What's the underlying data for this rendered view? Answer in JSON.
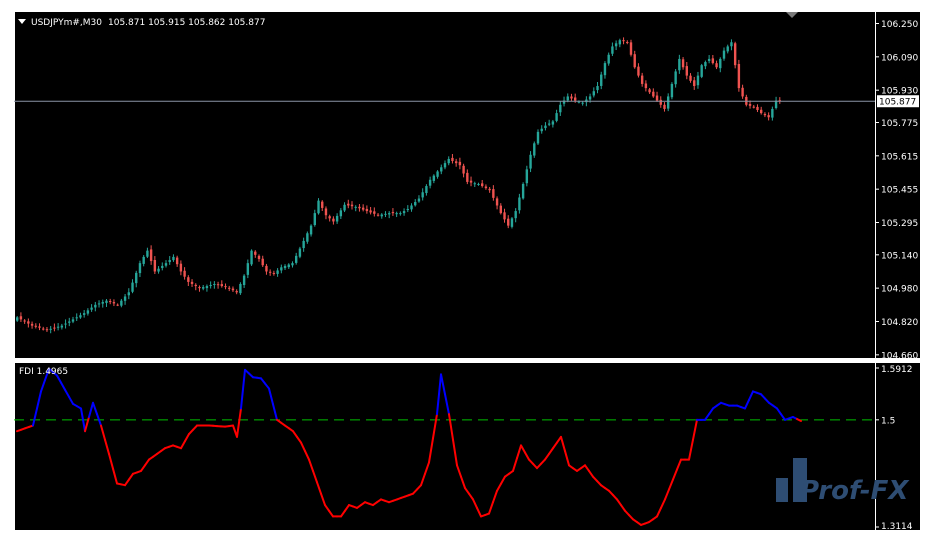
{
  "colors": {
    "background": "#000000",
    "frame": "#ffffff",
    "bull": "#26a69a",
    "bear": "#ef5350",
    "fdi_low": "#ff0000",
    "fdi_high": "#0000ff",
    "fdi_level": "#00c000",
    "bid_line": "#8a94a6",
    "axis_text": "#ffffff",
    "watermark": "#2e4d73"
  },
  "chart_data": [
    {
      "type": "candlestick",
      "title": "USDJPYm#,M30",
      "ohlc_readout": "105.871 105.915 105.862 105.877",
      "ylim": [
        104.64,
        106.31
      ],
      "y_ticks": [
        "106.250",
        "106.090",
        "105.930",
        "105.775",
        "105.615",
        "105.455",
        "105.295",
        "105.140",
        "104.980",
        "104.820",
        "104.660"
      ],
      "current_price": "105.877",
      "close_anchors": [
        [
          0,
          104.84
        ],
        [
          4,
          104.8
        ],
        [
          8,
          104.78
        ],
        [
          12,
          104.8
        ],
        [
          15,
          104.83
        ],
        [
          18,
          104.86
        ],
        [
          21,
          104.9
        ],
        [
          24,
          104.92
        ],
        [
          27,
          104.9
        ],
        [
          30,
          104.96
        ],
        [
          33,
          105.1
        ],
        [
          35,
          105.16
        ],
        [
          37,
          105.06
        ],
        [
          40,
          105.1
        ],
        [
          42,
          105.13
        ],
        [
          44,
          105.06
        ],
        [
          46,
          105.01
        ],
        [
          49,
          104.98
        ],
        [
          53,
          105.0
        ],
        [
          57,
          104.98
        ],
        [
          59,
          104.96
        ],
        [
          61,
          105.04
        ],
        [
          63,
          105.16
        ],
        [
          65,
          105.12
        ],
        [
          67,
          105.06
        ],
        [
          69,
          105.05
        ],
        [
          71,
          105.08
        ],
        [
          74,
          105.1
        ],
        [
          76,
          105.17
        ],
        [
          79,
          105.28
        ],
        [
          81,
          105.4
        ],
        [
          83,
          105.33
        ],
        [
          85,
          105.3
        ],
        [
          88,
          105.38
        ],
        [
          91,
          105.37
        ],
        [
          94,
          105.35
        ],
        [
          97,
          105.33
        ],
        [
          100,
          105.34
        ],
        [
          103,
          105.34
        ],
        [
          105,
          105.36
        ],
        [
          108,
          105.41
        ],
        [
          111,
          105.5
        ],
        [
          114,
          105.56
        ],
        [
          116,
          105.6
        ],
        [
          119,
          105.57
        ],
        [
          121,
          105.49
        ],
        [
          124,
          105.48
        ],
        [
          127,
          105.45
        ],
        [
          130,
          105.34
        ],
        [
          132,
          105.28
        ],
        [
          134,
          105.35
        ],
        [
          136,
          105.48
        ],
        [
          138,
          105.62
        ],
        [
          140,
          105.73
        ],
        [
          142,
          105.76
        ],
        [
          144,
          105.78
        ],
        [
          146,
          105.86
        ],
        [
          148,
          105.9
        ],
        [
          150,
          105.88
        ],
        [
          152,
          105.87
        ],
        [
          154,
          105.9
        ],
        [
          156,
          105.95
        ],
        [
          158,
          106.06
        ],
        [
          160,
          106.14
        ],
        [
          162,
          106.17
        ],
        [
          164,
          106.16
        ],
        [
          166,
          106.04
        ],
        [
          168,
          105.96
        ],
        [
          170,
          105.92
        ],
        [
          172,
          105.88
        ],
        [
          174,
          105.84
        ],
        [
          176,
          105.96
        ],
        [
          178,
          106.08
        ],
        [
          180,
          106.0
        ],
        [
          182,
          105.95
        ],
        [
          184,
          106.05
        ],
        [
          186,
          106.08
        ],
        [
          188,
          106.04
        ],
        [
          190,
          106.12
        ],
        [
          192,
          106.16
        ],
        [
          194,
          105.94
        ],
        [
          196,
          105.86
        ],
        [
          198,
          105.85
        ],
        [
          200,
          105.82
        ],
        [
          202,
          105.8
        ],
        [
          204,
          105.88
        ],
        [
          205,
          105.877
        ]
      ]
    },
    {
      "type": "line",
      "title": "FDI 1.4965",
      "ylim": [
        1.3114,
        1.5912
      ],
      "y_ticks": [
        "1.5912",
        "1.5",
        "1.3114"
      ],
      "level": 1.5,
      "values_anchors": [
        [
          0,
          1.48
        ],
        [
          2,
          1.485
        ],
        [
          4,
          1.49
        ],
        [
          6,
          1.55
        ],
        [
          8,
          1.59
        ],
        [
          10,
          1.578
        ],
        [
          12,
          1.553
        ],
        [
          14,
          1.528
        ],
        [
          16,
          1.52
        ],
        [
          17,
          1.48
        ],
        [
          19,
          1.53
        ],
        [
          21,
          1.49
        ],
        [
          23,
          1.44
        ],
        [
          25,
          1.388
        ],
        [
          27,
          1.385
        ],
        [
          29,
          1.405
        ],
        [
          31,
          1.41
        ],
        [
          33,
          1.43
        ],
        [
          35,
          1.44
        ],
        [
          37,
          1.45
        ],
        [
          39,
          1.455
        ],
        [
          41,
          1.45
        ],
        [
          43,
          1.475
        ],
        [
          45,
          1.49
        ],
        [
          48,
          1.49
        ],
        [
          52,
          1.488
        ],
        [
          54,
          1.49
        ],
        [
          55,
          1.47
        ],
        [
          56,
          1.52
        ],
        [
          57,
          1.588
        ],
        [
          59,
          1.575
        ],
        [
          61,
          1.573
        ],
        [
          63,
          1.555
        ],
        [
          65,
          1.5
        ],
        [
          67,
          1.49
        ],
        [
          69,
          1.48
        ],
        [
          71,
          1.46
        ],
        [
          73,
          1.43
        ],
        [
          75,
          1.39
        ],
        [
          77,
          1.35
        ],
        [
          79,
          1.33
        ],
        [
          81,
          1.33
        ],
        [
          83,
          1.35
        ],
        [
          85,
          1.345
        ],
        [
          87,
          1.355
        ],
        [
          89,
          1.35
        ],
        [
          91,
          1.36
        ],
        [
          93,
          1.355
        ],
        [
          95,
          1.36
        ],
        [
          97,
          1.365
        ],
        [
          99,
          1.37
        ],
        [
          101,
          1.385
        ],
        [
          103,
          1.425
        ],
        [
          105,
          1.51
        ],
        [
          106,
          1.58
        ],
        [
          108,
          1.51
        ],
        [
          110,
          1.42
        ],
        [
          112,
          1.38
        ],
        [
          114,
          1.36
        ],
        [
          116,
          1.33
        ],
        [
          118,
          1.335
        ],
        [
          120,
          1.375
        ],
        [
          122,
          1.4
        ],
        [
          124,
          1.41
        ],
        [
          126,
          1.455
        ],
        [
          128,
          1.43
        ],
        [
          130,
          1.415
        ],
        [
          132,
          1.43
        ],
        [
          134,
          1.45
        ],
        [
          136,
          1.47
        ],
        [
          138,
          1.42
        ],
        [
          140,
          1.41
        ],
        [
          142,
          1.42
        ],
        [
          144,
          1.4
        ],
        [
          146,
          1.385
        ],
        [
          148,
          1.375
        ],
        [
          150,
          1.36
        ],
        [
          152,
          1.34
        ],
        [
          154,
          1.325
        ],
        [
          156,
          1.315
        ],
        [
          158,
          1.32
        ],
        [
          160,
          1.33
        ],
        [
          162,
          1.36
        ],
        [
          164,
          1.395
        ],
        [
          166,
          1.43
        ],
        [
          168,
          1.43
        ],
        [
          170,
          1.5
        ],
        [
          172,
          1.5
        ],
        [
          174,
          1.52
        ],
        [
          176,
          1.53
        ],
        [
          178,
          1.525
        ],
        [
          180,
          1.525
        ],
        [
          182,
          1.52
        ],
        [
          184,
          1.55
        ],
        [
          186,
          1.545
        ],
        [
          188,
          1.53
        ],
        [
          190,
          1.52
        ],
        [
          192,
          1.5
        ],
        [
          194,
          1.505
        ],
        [
          196,
          1.498
        ]
      ]
    }
  ],
  "watermark_text": "Prof-FX"
}
